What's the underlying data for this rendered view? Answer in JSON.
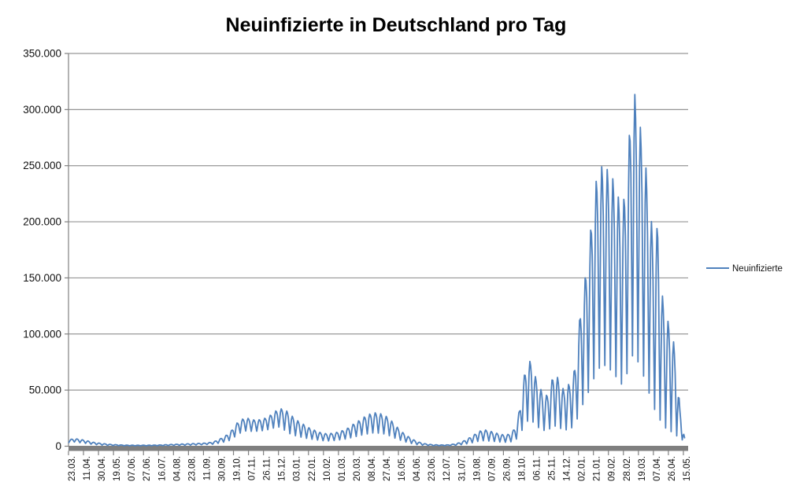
{
  "chart_data": {
    "type": "line",
    "title": "Neuinfizierte in Deutschland pro Tag",
    "legend": {
      "position": "right",
      "entries": [
        {
          "label": "Neuinfizierte",
          "color": "#4F81BD"
        }
      ]
    },
    "colors": {
      "line": "#4F81BD",
      "gridline": "#969696",
      "axis_line": "#808080",
      "category_axis_bar": "#7F7F7F",
      "text": "#111111",
      "background": "#FFFFFF"
    },
    "grid": {
      "horizontal": true,
      "vertical": false
    },
    "y_axis": {
      "min": 0,
      "max": 350000,
      "tick_values": [
        0,
        50000,
        100000,
        150000,
        200000,
        250000,
        300000,
        350000
      ],
      "tick_labels": [
        "0",
        "50.000",
        "100.000",
        "150.000",
        "200.000",
        "250.000",
        "300.000",
        "350.000"
      ]
    },
    "x_axis": {
      "tick_interval_days": 19,
      "total_days": 785,
      "tick_labels": [
        "23.03.",
        "11.04.",
        "30.04.",
        "19.05.",
        "07.06.",
        "27.06.",
        "16.07.",
        "04.08.",
        "23.08.",
        "11.09.",
        "30.09.",
        "19.10.",
        "07.11.",
        "26.11.",
        "15.12.",
        "03.01.",
        "22.01.",
        "10.02.",
        "01.03.",
        "20.03.",
        "08.04.",
        "27.04.",
        "16.05.",
        "04.06.",
        "23.06.",
        "12.07.",
        "31.07.",
        "19.08.",
        "07.09.",
        "26.09.",
        "18.10.",
        "06.11.",
        "25.11.",
        "14.12.",
        "02.01.",
        "21.01.",
        "09.02.",
        "28.02.",
        "19.03.",
        "07.04.",
        "26.04.",
        "15.05."
      ]
    },
    "series": [
      {
        "name": "Neuinfizierte",
        "color": "#4F81BD",
        "days": 780,
        "weekly_pattern": [
          0.04,
          0.42,
          0.82,
          1.0,
          0.93,
          0.76,
          0.38
        ],
        "envelope": [
          [
            0,
            3200,
            5800
          ],
          [
            7,
            3600,
            6800
          ],
          [
            14,
            3000,
            6200
          ],
          [
            21,
            2400,
            5200
          ],
          [
            30,
            1500,
            3600
          ],
          [
            42,
            900,
            2400
          ],
          [
            55,
            500,
            1500
          ],
          [
            70,
            350,
            1000
          ],
          [
            85,
            300,
            850
          ],
          [
            100,
            320,
            900
          ],
          [
            115,
            400,
            1100
          ],
          [
            130,
            600,
            1600
          ],
          [
            145,
            800,
            2000
          ],
          [
            160,
            1000,
            2400
          ],
          [
            172,
            1300,
            2800
          ],
          [
            182,
            1700,
            3600
          ],
          [
            190,
            2500,
            6000
          ],
          [
            198,
            3800,
            9000
          ],
          [
            205,
            5000,
            13000
          ],
          [
            212,
            9000,
            20000
          ],
          [
            219,
            12000,
            24000
          ],
          [
            226,
            13500,
            25000
          ],
          [
            233,
            12500,
            23500
          ],
          [
            240,
            13000,
            23500
          ],
          [
            247,
            13500,
            24500
          ],
          [
            254,
            14500,
            27000
          ],
          [
            261,
            16000,
            31000
          ],
          [
            268,
            16500,
            33500
          ],
          [
            275,
            12500,
            32000
          ],
          [
            281,
            10000,
            28000
          ],
          [
            288,
            8500,
            23500
          ],
          [
            296,
            7200,
            20000
          ],
          [
            304,
            6200,
            16500
          ],
          [
            312,
            5400,
            14000
          ],
          [
            320,
            4700,
            11800
          ],
          [
            328,
            4400,
            11000
          ],
          [
            336,
            4800,
            11800
          ],
          [
            344,
            5400,
            13200
          ],
          [
            352,
            6200,
            15500
          ],
          [
            360,
            7500,
            19500
          ],
          [
            368,
            8800,
            23000
          ],
          [
            376,
            10000,
            27000
          ],
          [
            384,
            11000,
            29500
          ],
          [
            391,
            11000,
            30000
          ],
          [
            398,
            10400,
            28000
          ],
          [
            405,
            9000,
            25500
          ],
          [
            412,
            7000,
            20000
          ],
          [
            419,
            5200,
            14500
          ],
          [
            426,
            3600,
            10500
          ],
          [
            433,
            2300,
            7200
          ],
          [
            441,
            1300,
            4200
          ],
          [
            450,
            700,
            2300
          ],
          [
            460,
            450,
            1400
          ],
          [
            470,
            380,
            1100
          ],
          [
            480,
            420,
            1200
          ],
          [
            490,
            700,
            2100
          ],
          [
            498,
            1300,
            4000
          ],
          [
            505,
            2000,
            6500
          ],
          [
            512,
            3000,
            9500
          ],
          [
            519,
            4000,
            13000
          ],
          [
            526,
            4500,
            14800
          ],
          [
            533,
            4200,
            13500
          ],
          [
            540,
            3800,
            12000
          ],
          [
            547,
            3400,
            10500
          ],
          [
            554,
            3200,
            10000
          ],
          [
            560,
            3600,
            11500
          ],
          [
            566,
            5000,
            17000
          ],
          [
            571,
            9000,
            33000
          ],
          [
            576,
            15000,
            60000
          ],
          [
            581,
            20000,
            76500
          ],
          [
            586,
            21000,
            75000
          ],
          [
            591,
            17000,
            62000
          ],
          [
            597,
            14000,
            52000
          ],
          [
            603,
            12500,
            43000
          ],
          [
            609,
            14000,
            50000
          ],
          [
            615,
            16000,
            68000
          ],
          [
            621,
            15000,
            58000
          ],
          [
            627,
            12500,
            50000
          ],
          [
            633,
            13500,
            55000
          ],
          [
            638,
            15000,
            58000
          ],
          [
            643,
            20000,
            80000
          ],
          [
            648,
            28000,
            120000
          ],
          [
            654,
            38000,
            150000
          ],
          [
            660,
            45000,
            185000
          ],
          [
            666,
            55000,
            230000
          ],
          [
            672,
            62000,
            248000
          ],
          [
            678,
            65000,
            250000
          ],
          [
            684,
            62000,
            245000
          ],
          [
            690,
            58000,
            237000
          ],
          [
            696,
            52000,
            222000
          ],
          [
            701,
            48000,
            210000
          ],
          [
            706,
            55000,
            235000
          ],
          [
            712,
            68000,
            298000
          ],
          [
            716,
            74000,
            318000
          ],
          [
            721,
            66000,
            295000
          ],
          [
            726,
            58000,
            277000
          ],
          [
            731,
            48000,
            248000
          ],
          [
            736,
            38000,
            215000
          ],
          [
            741,
            28000,
            178000
          ],
          [
            746,
            21000,
            198000
          ],
          [
            751,
            15000,
            138000
          ],
          [
            757,
            11500,
            113000
          ],
          [
            763,
            9000,
            108000
          ],
          [
            769,
            7000,
            78000
          ],
          [
            774,
            5500,
            34000
          ],
          [
            780,
            4500,
            7500
          ]
        ]
      }
    ]
  }
}
